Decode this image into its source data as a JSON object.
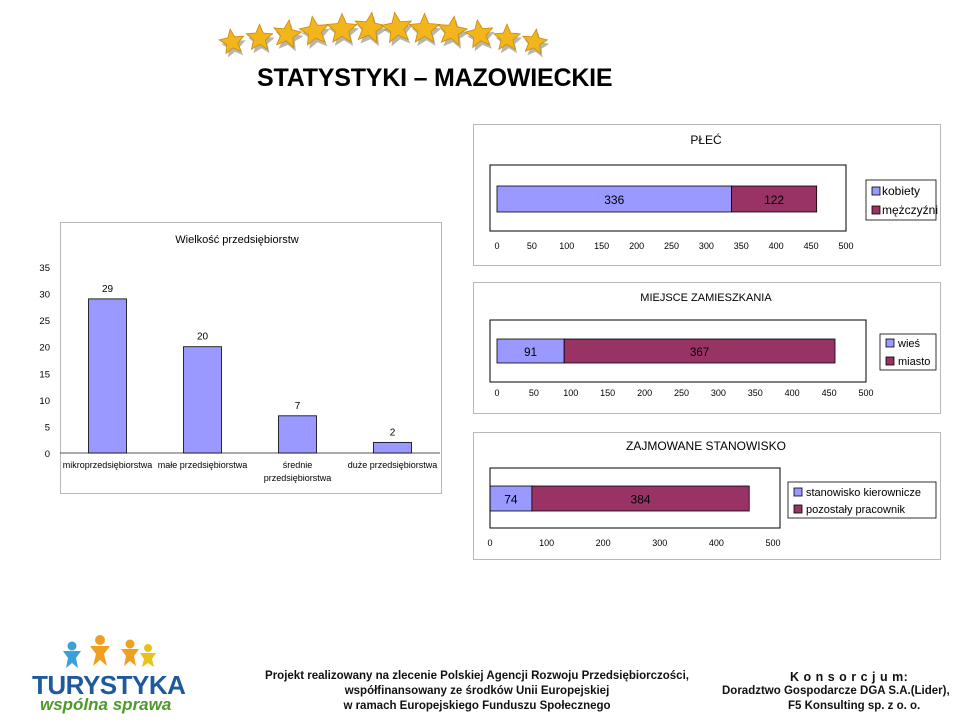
{
  "page": {
    "title": "STATYSTYKI – MAZOWIECKIE"
  },
  "colors": {
    "bar_blue": "#9999ff",
    "bar_maroon": "#993366",
    "plot_grey": "#c0c0c0",
    "star_gold": "#f2b51c",
    "star_shadow": "#7a7a6a",
    "logo_blue": "#1f5a9c",
    "logo_green": "#4c9a2a",
    "logo_orange": "#f0a020"
  },
  "footer": {
    "logo_line1": "TURYSTYKA",
    "logo_line2": "wspólna sprawa",
    "center_lines": [
      "Projekt realizowany na zlecenie Polskiej Agencji Rozwoju Przedsiębiorczości,",
      "współfinansowany ze środków Unii Europejskiej",
      "w ramach Europejskiego Funduszu Społecznego"
    ],
    "right_lines": [
      "K o n s o r c j u m:",
      "Doradztwo Gospodarcze DGA  S.A.(Lider),",
      "F5 Konsulting sp. z o. o."
    ]
  },
  "chart_data": [
    {
      "id": "wielkosc",
      "type": "bar",
      "title": "Wielkość przedsiębiorstw",
      "categories": [
        "mikroprzedsiębiorstwa",
        "małe przedsiębiorstwa",
        "średnie przedsiębiorstwa",
        "duże przedsiębiorstwa"
      ],
      "category_lines": [
        [
          "mikroprzedsiębiorstwa"
        ],
        [
          "małe przedsiębiorstwa"
        ],
        [
          "średnie",
          "przedsiębiorstwa"
        ],
        [
          "duże przedsiębiorstwa"
        ]
      ],
      "values": [
        29,
        20,
        7,
        2
      ],
      "ylim": [
        0,
        35
      ],
      "yticks": [
        "0",
        "5",
        "10",
        "15",
        "20",
        "25",
        "30",
        "35"
      ],
      "grid": false,
      "legend": "none"
    },
    {
      "id": "plec",
      "type": "bar",
      "orientation": "horizontal-stacked",
      "title": "PŁEĆ",
      "series": [
        {
          "name": "kobiety",
          "values": [
            336
          ]
        },
        {
          "name": "mężczyźni",
          "values": [
            122
          ]
        }
      ],
      "xlim": [
        0,
        500
      ],
      "xticks": [
        "0",
        "50",
        "100",
        "150",
        "200",
        "250",
        "300",
        "350",
        "400",
        "450",
        "500"
      ],
      "legend": "right"
    },
    {
      "id": "miejsce",
      "type": "bar",
      "orientation": "horizontal-stacked",
      "title": "MIEJSCE ZAMIESZKANIA",
      "series": [
        {
          "name": "wieś",
          "values": [
            91
          ]
        },
        {
          "name": "miasto",
          "values": [
            367
          ]
        }
      ],
      "xlim": [
        0,
        500
      ],
      "xticks": [
        "0",
        "50",
        "100",
        "150",
        "200",
        "250",
        "300",
        "350",
        "400",
        "450",
        "500"
      ],
      "legend": "right"
    },
    {
      "id": "stanowisko",
      "type": "bar",
      "orientation": "horizontal-stacked",
      "title": "ZAJMOWANE STANOWISKO",
      "series": [
        {
          "name": "stanowisko kierownicze",
          "values": [
            74
          ]
        },
        {
          "name": "pozostały pracownik",
          "values": [
            384
          ]
        }
      ],
      "xlim": [
        0,
        500
      ],
      "xticks": [
        "0",
        "100",
        "200",
        "300",
        "400",
        "500"
      ],
      "legend": "right"
    }
  ]
}
